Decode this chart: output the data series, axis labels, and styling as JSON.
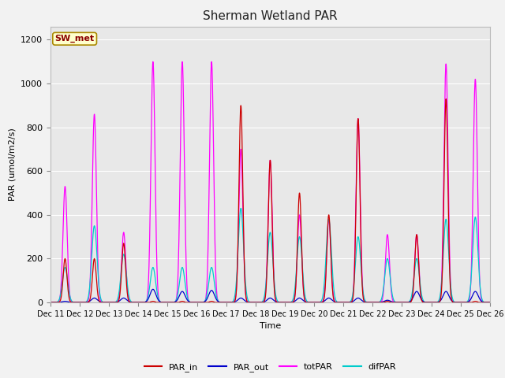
{
  "title": "Sherman Wetland PAR",
  "xlabel": "Time",
  "ylabel": "PAR (umol/m2/s)",
  "ylim": [
    0,
    1260
  ],
  "annotation_text": "SW_met",
  "annotation_bg": "#ffffcc",
  "annotation_border": "#aa8800",
  "annotation_text_color": "#8b0000",
  "fig_bg": "#f2f2f2",
  "plot_bg": "#e8e8e8",
  "line_colors": {
    "PAR_in": "#cc0000",
    "PAR_out": "#0000cc",
    "totPAR": "#ff00ff",
    "difPAR": "#00cccc"
  },
  "yticks": [
    0,
    200,
    400,
    600,
    800,
    1000,
    1200
  ],
  "xtick_labels": [
    "Dec 11",
    "Dec 12",
    "Dec 13",
    "Dec 14",
    "Dec 15",
    "Dec 16",
    "Dec 17",
    "Dec 18",
    "Dec 19",
    "Dec 20",
    "Dec 21",
    "Dec 22",
    "Dec 23",
    "Dec 24",
    "Dec 25",
    "Dec 26"
  ],
  "tot_peaks": [
    530,
    860,
    320,
    1100,
    1100,
    1100,
    700,
    650,
    400,
    380,
    840,
    310,
    310,
    1090,
    1020
  ],
  "par_in_peaks": [
    200,
    200,
    270,
    5,
    5,
    5,
    900,
    650,
    500,
    400,
    840,
    5,
    310,
    930,
    5
  ],
  "par_out_peaks": [
    5,
    20,
    20,
    60,
    50,
    55,
    20,
    20,
    20,
    20,
    20,
    10,
    50,
    50,
    50
  ],
  "dif_peaks": [
    160,
    350,
    220,
    160,
    160,
    160,
    430,
    320,
    300,
    380,
    300,
    200,
    200,
    380,
    390
  ]
}
